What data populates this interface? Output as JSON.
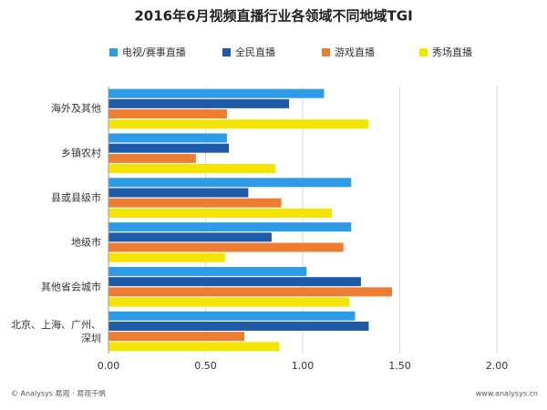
{
  "chart_data": {
    "type": "bar",
    "title": "2016年6月视频直播行业各领域不同地域TGI",
    "categories": [
      "海外及其他",
      "乡镇农村",
      "县或县级市",
      "地级市",
      "其他省会城市",
      "北京、上海、广州、深圳"
    ],
    "series": [
      {
        "name": "电视/赛事直播",
        "color": "#2e9be6",
        "values": [
          1.11,
          0.61,
          1.25,
          1.25,
          1.02,
          1.27
        ]
      },
      {
        "name": "全民直播",
        "color": "#1f5aa8",
        "values": [
          0.93,
          0.62,
          0.72,
          0.84,
          1.3,
          1.34
        ]
      },
      {
        "name": "游戏直播",
        "color": "#ed7d31",
        "values": [
          0.61,
          0.45,
          0.89,
          1.21,
          1.46,
          0.7
        ]
      },
      {
        "name": "秀场直播",
        "color": "#f5e400",
        "values": [
          1.34,
          0.86,
          1.15,
          0.6,
          1.24,
          0.88
        ]
      }
    ],
    "xlim": [
      0,
      2
    ],
    "xticks": [
      {
        "value": 0,
        "label": "0.00"
      },
      {
        "value": 0.5,
        "label": "0.50"
      },
      {
        "value": 1,
        "label": "1.00"
      },
      {
        "value": 1.5,
        "label": "1.50"
      },
      {
        "value": 2,
        "label": "2.00"
      }
    ],
    "grid": true,
    "footer": [
      "© Analysys 易观 · 易观千帆",
      "www.analysys.cn"
    ]
  }
}
